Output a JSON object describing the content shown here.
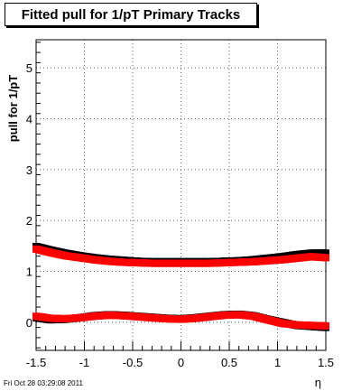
{
  "title": "Fitted pull for 1/pT  Primary Tracks",
  "footer": "Fri Oct 28 03:29:08 2011",
  "chart_data": {
    "type": "scatter",
    "title": "Fitted pull for 1/pT  Primary Tracks",
    "xlabel": "η",
    "ylabel": "pull for 1/pT",
    "xlim": [
      -1.5,
      1.5
    ],
    "ylim": [
      -0.55,
      5.55
    ],
    "x_ticks": [
      "-1.5",
      "-1",
      "-0.5",
      "0",
      "0.5",
      "1",
      "1.5"
    ],
    "x_tick_values": [
      -1.5,
      -1,
      -0.5,
      0,
      0.5,
      1,
      1.5
    ],
    "y_ticks": [
      "0",
      "1",
      "2",
      "3",
      "4",
      "5"
    ],
    "y_tick_values": [
      0,
      1,
      2,
      3,
      4,
      5
    ],
    "grid": true,
    "series": [
      {
        "color": "#000000",
        "marker": "square",
        "x": [
          -1.5,
          -1.35,
          -1.2,
          -1.05,
          -0.9,
          -0.75,
          -0.6,
          -0.45,
          -0.3,
          -0.15,
          0,
          0.15,
          0.3,
          0.45,
          0.6,
          0.75,
          0.9,
          1.05,
          1.2,
          1.35,
          1.5
        ],
        "y": [
          1.49,
          1.42,
          1.36,
          1.31,
          1.27,
          1.24,
          1.22,
          1.2,
          1.19,
          1.19,
          1.19,
          1.19,
          1.19,
          1.2,
          1.21,
          1.23,
          1.26,
          1.29,
          1.33,
          1.36,
          1.36
        ]
      },
      {
        "color": "#ff0000",
        "marker": "square",
        "x": [
          -1.5,
          -1.35,
          -1.2,
          -1.05,
          -0.9,
          -0.75,
          -0.6,
          -0.45,
          -0.3,
          -0.15,
          0,
          0.15,
          0.3,
          0.45,
          0.6,
          0.75,
          0.9,
          1.05,
          1.2,
          1.35,
          1.5
        ],
        "y": [
          1.44,
          1.37,
          1.31,
          1.27,
          1.23,
          1.2,
          1.18,
          1.17,
          1.16,
          1.16,
          1.16,
          1.16,
          1.16,
          1.17,
          1.18,
          1.19,
          1.21,
          1.23,
          1.26,
          1.29,
          1.27
        ]
      },
      {
        "color": "#000000",
        "marker": "square",
        "x": [
          -1.5,
          -1.35,
          -1.2,
          -1.05,
          -0.9,
          -0.75,
          -0.6,
          -0.45,
          -0.3,
          -0.15,
          0,
          0.15,
          0.3,
          0.45,
          0.6,
          0.75,
          0.9,
          1.05,
          1.2,
          1.35,
          1.5
        ],
        "y": [
          0.09,
          0.05,
          0.06,
          0.09,
          0.13,
          0.15,
          0.14,
          0.12,
          0.1,
          0.08,
          0.07,
          0.09,
          0.12,
          0.15,
          0.16,
          0.13,
          0.06,
          0.0,
          -0.06,
          -0.08,
          -0.1
        ]
      },
      {
        "color": "#ff0000",
        "marker": "square",
        "x": [
          -1.5,
          -1.35,
          -1.2,
          -1.05,
          -0.9,
          -0.75,
          -0.6,
          -0.45,
          -0.3,
          -0.15,
          0,
          0.15,
          0.3,
          0.45,
          0.6,
          0.75,
          0.9,
          1.05,
          1.2,
          1.35,
          1.5
        ],
        "y": [
          0.12,
          0.08,
          0.07,
          0.09,
          0.12,
          0.14,
          0.13,
          0.11,
          0.09,
          0.07,
          0.06,
          0.08,
          0.11,
          0.14,
          0.15,
          0.12,
          0.05,
          -0.02,
          -0.05,
          -0.06,
          -0.07
        ]
      }
    ]
  }
}
